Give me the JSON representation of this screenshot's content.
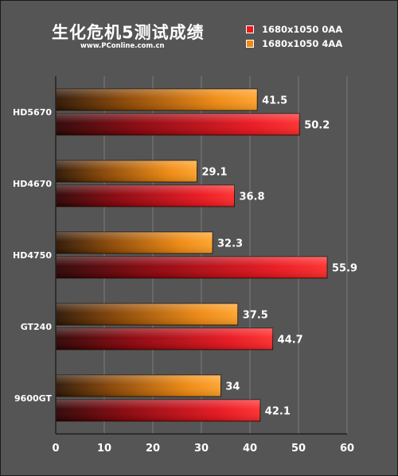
{
  "title": "生化危机5测试成绩",
  "subtitle": "www.PConline.com.cn",
  "legend": [
    {
      "label": "1680x1050 0AA",
      "color": "#e8191c"
    },
    {
      "label": "1680x1050 4AA",
      "color": "#f28a0f"
    }
  ],
  "chart_data": {
    "type": "bar",
    "orientation": "horizontal",
    "title": "生化危机5测试成绩",
    "categories": [
      "HD5670",
      "HD4670",
      "HD4750",
      "GT240",
      "9600GT"
    ],
    "series": [
      {
        "name": "1680x1050 4AA",
        "values": [
          41.5,
          29.1,
          32.3,
          37.5,
          34
        ],
        "color": "#f28a0f"
      },
      {
        "name": "1680x1050 0AA",
        "values": [
          50.2,
          36.8,
          55.9,
          44.7,
          42.1
        ],
        "color": "#e8191c"
      }
    ],
    "value_labels": [
      [
        "41.5",
        "29.1",
        "32.3",
        "37.5",
        "34"
      ],
      [
        "50.2",
        "36.8",
        "55.9",
        "44.7",
        "42.1"
      ]
    ],
    "xlim": [
      0,
      60
    ],
    "xticks": [
      "0",
      "10",
      "20",
      "30",
      "40",
      "50",
      "60"
    ],
    "grid": true,
    "legend_position": "top-right"
  }
}
